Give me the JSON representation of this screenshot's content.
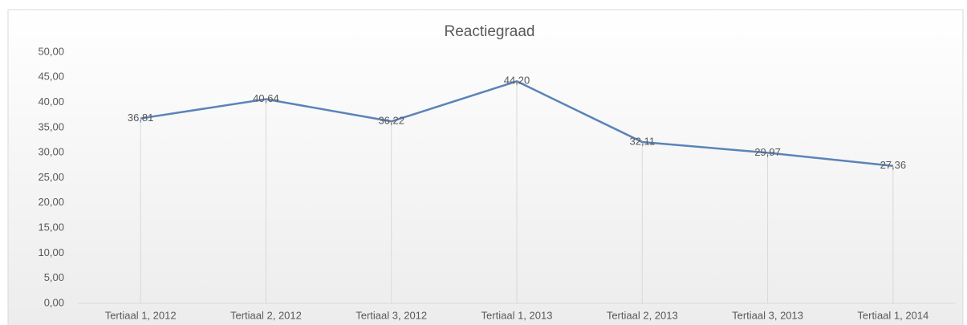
{
  "chart_data": {
    "type": "line",
    "title": "Reactiegraad",
    "categories": [
      "Tertiaal  1, 2012",
      "Tertiaal  2, 2012",
      "Tertiaal  3, 2012",
      "Tertiaal  1, 2013",
      "Tertiaal  2, 2013",
      "Tertiaal  3, 2013",
      "Tertiaal  1, 2014"
    ],
    "series": [
      {
        "name": "Reactiegraad",
        "color": "#5b83b9",
        "values": [
          36.81,
          40.64,
          36.22,
          44.2,
          32.11,
          29.97,
          27.36
        ],
        "value_labels": [
          "36,81",
          "40,64",
          "36,22",
          "44,20",
          "32,11",
          "29,97",
          "27,36"
        ]
      }
    ],
    "ylim": [
      0,
      50
    ],
    "yticks": [
      {
        "value": 0,
        "label": "0,00"
      },
      {
        "value": 5,
        "label": "5,00"
      },
      {
        "value": 10,
        "label": "10,00"
      },
      {
        "value": 15,
        "label": "15,00"
      },
      {
        "value": 20,
        "label": "20,00"
      },
      {
        "value": 25,
        "label": "25,00"
      },
      {
        "value": 30,
        "label": "30,00"
      },
      {
        "value": 35,
        "label": "35,00"
      },
      {
        "value": 40,
        "label": "40,00"
      },
      {
        "value": 45,
        "label": "45,00"
      },
      {
        "value": 50,
        "label": "50,00"
      }
    ],
    "drop_lines": true
  }
}
